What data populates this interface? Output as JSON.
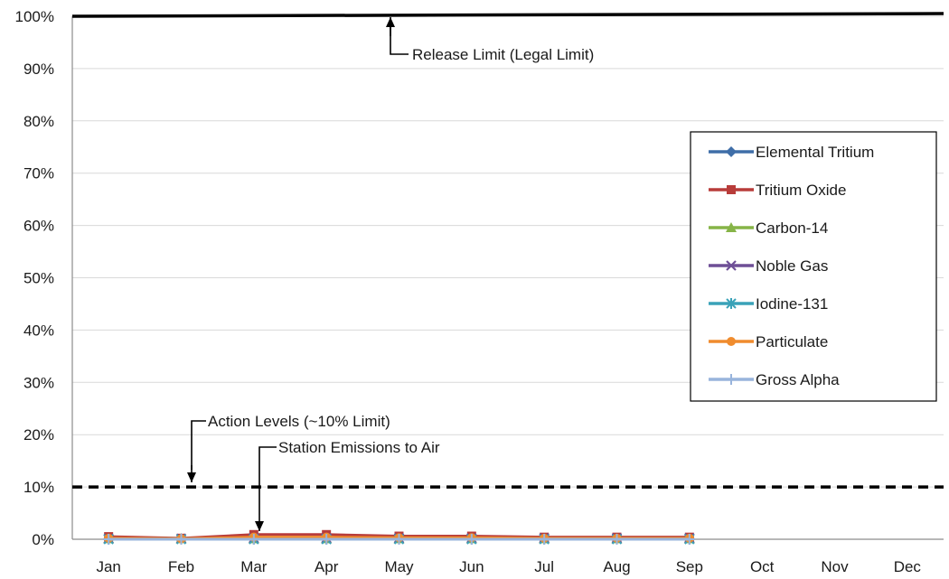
{
  "chart_data": {
    "type": "line",
    "categories": [
      "Jan",
      "Feb",
      "Mar",
      "Apr",
      "May",
      "Jun",
      "Jul",
      "Aug",
      "Sep",
      "Oct",
      "Nov",
      "Dec"
    ],
    "ylim": [
      0,
      100
    ],
    "yticks": [
      0,
      10,
      20,
      30,
      40,
      50,
      60,
      70,
      80,
      90,
      100
    ],
    "ytick_labels": [
      "0%",
      "10%",
      "20%",
      "30%",
      "40%",
      "50%",
      "60%",
      "70%",
      "80%",
      "90%",
      "100%"
    ],
    "grid": "horizontal",
    "legend_position": "right",
    "series": [
      {
        "name": "Elemental Tritium",
        "color": "#3f6ea8",
        "marker": "diamond",
        "values": [
          0.1,
          0.1,
          0.1,
          0.1,
          0.1,
          0.1,
          0.1,
          0.1,
          0.1,
          null,
          null,
          null
        ]
      },
      {
        "name": "Tritium Oxide",
        "color": "#b83c3a",
        "marker": "square",
        "values": [
          0.5,
          0.2,
          0.9,
          0.9,
          0.6,
          0.6,
          0.4,
          0.4,
          0.4,
          null,
          null,
          null
        ]
      },
      {
        "name": "Carbon-14",
        "color": "#86b447",
        "marker": "triangle",
        "values": [
          0.1,
          0.1,
          0.1,
          0.1,
          0.1,
          0.1,
          0.1,
          0.1,
          0.1,
          null,
          null,
          null
        ]
      },
      {
        "name": "Noble Gas",
        "color": "#6e4f96",
        "marker": "x",
        "values": [
          0.1,
          0.1,
          0.2,
          0.2,
          0.2,
          0.2,
          0.2,
          0.2,
          0.2,
          null,
          null,
          null
        ]
      },
      {
        "name": "Iodine-131",
        "color": "#3aa2b8",
        "marker": "star",
        "values": [
          0.0,
          0.0,
          0.0,
          0.0,
          0.0,
          0.0,
          0.0,
          0.0,
          0.0,
          null,
          null,
          null
        ]
      },
      {
        "name": "Particulate",
        "color": "#f08c2e",
        "marker": "circle",
        "values": [
          0.2,
          0.1,
          0.4,
          0.4,
          0.3,
          0.3,
          0.2,
          0.2,
          0.2,
          null,
          null,
          null
        ]
      },
      {
        "name": "Gross Alpha",
        "color": "#98b4dc",
        "marker": "plus",
        "values": [
          0.0,
          0.0,
          0.0,
          0.0,
          0.0,
          0.0,
          0.0,
          0.0,
          0.0,
          null,
          null,
          null
        ]
      }
    ],
    "reference_lines": [
      {
        "name": "release-limit",
        "value": 100,
        "style": "solid",
        "color": "#000000"
      },
      {
        "name": "action-level",
        "value": 10,
        "style": "dashed",
        "color": "#000000"
      }
    ],
    "annotations": {
      "release_limit": "Release Limit (Legal Limit)",
      "action_levels": "Action Levels (~10% Limit)",
      "station_emissions": "Station Emissions to Air"
    }
  }
}
